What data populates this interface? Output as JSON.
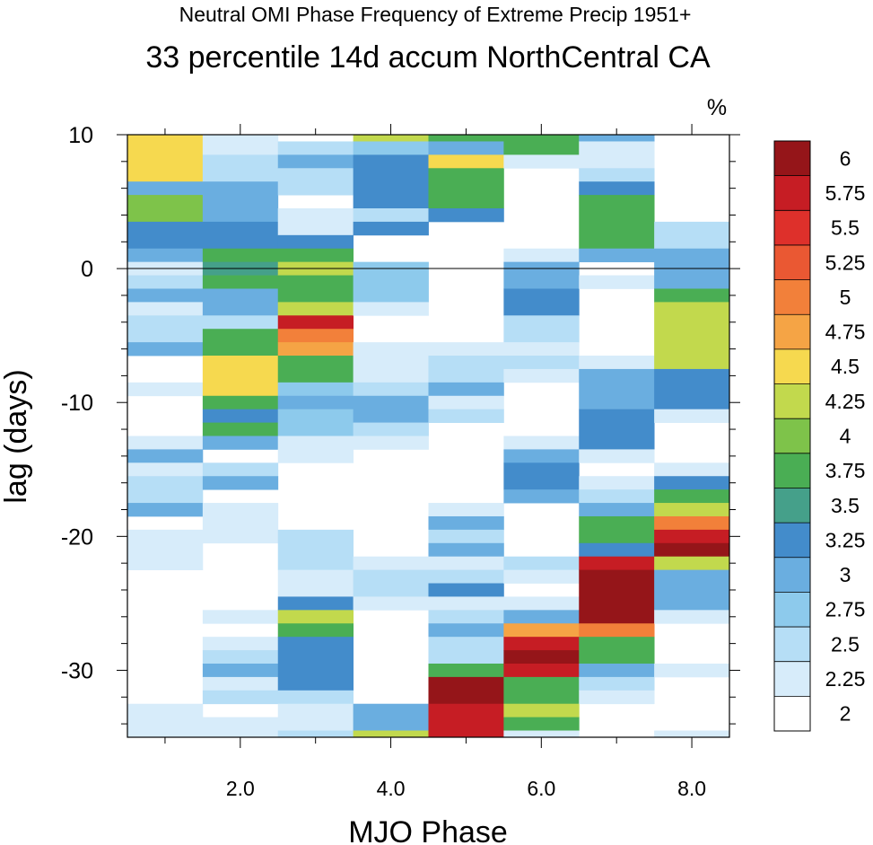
{
  "chart_data": {
    "type": "heatmap",
    "title": "33 percentile 14d accum NorthCentral CA",
    "subtitle": "Neutral OMI Phase Frequency of Extreme Precip 1951+",
    "units": "%",
    "xlabel": "MJO Phase",
    "ylabel": "lag (days)",
    "xlim": [
      0.5,
      8.5
    ],
    "ylim": [
      -35,
      10
    ],
    "xticks": [
      2,
      4,
      6,
      8
    ],
    "xtick_labels": [
      "2.0",
      "4.0",
      "6.0",
      "8.0"
    ],
    "yticks": [
      10,
      0,
      -10,
      -20,
      -30
    ],
    "ytick_labels": [
      "10",
      "0",
      "-10",
      "-20",
      "-30"
    ],
    "zero_line": true,
    "colorbar": {
      "levels": [
        "2",
        "2.25",
        "2.5",
        "2.75",
        "3",
        "3.25",
        "3.5",
        "3.75",
        "4",
        "4.25",
        "4.5",
        "4.75",
        "5",
        "5.25",
        "5.5",
        "5.75",
        "6"
      ],
      "colors": [
        "#ffffff",
        "#d7ecfa",
        "#b6def6",
        "#8dcaec",
        "#6aaee0",
        "#438ccb",
        "#45a08a",
        "#4aae54",
        "#7ec34a",
        "#c2d94d",
        "#f6d94f",
        "#f5a445",
        "#f2803a",
        "#ea5833",
        "#de302b",
        "#c61d24",
        "#951519"
      ]
    },
    "phases": [
      {
        "phase": 1,
        "runs": [
          [
            10,
            6.5,
            10
          ],
          [
            6.5,
            5.5,
            4
          ],
          [
            5.5,
            3.5,
            8
          ],
          [
            3.5,
            1.5,
            5
          ],
          [
            1.5,
            0.5,
            4
          ],
          [
            0.5,
            -0.5,
            1
          ],
          [
            -0.5,
            -1.5,
            2
          ],
          [
            -1.5,
            -2.5,
            4
          ],
          [
            -2.5,
            -3.5,
            1
          ],
          [
            -3.5,
            -5.5,
            2
          ],
          [
            -5.5,
            -6.5,
            4
          ],
          [
            -8.5,
            -9.5,
            1
          ],
          [
            -12.5,
            -13.5,
            1
          ],
          [
            -13.5,
            -14.5,
            4
          ],
          [
            -14.5,
            -15.5,
            1
          ],
          [
            -15.5,
            -17.5,
            2
          ],
          [
            -17.5,
            -18.5,
            4
          ],
          [
            -19.5,
            -22.5,
            1
          ],
          [
            -32.5,
            -35,
            1
          ]
        ]
      },
      {
        "phase": 2,
        "runs": [
          [
            10,
            8.5,
            1
          ],
          [
            8.5,
            6.5,
            2
          ],
          [
            6.5,
            3.5,
            4
          ],
          [
            3.5,
            1.5,
            5
          ],
          [
            1.5,
            0.5,
            7
          ],
          [
            0.5,
            -0.5,
            6
          ],
          [
            -0.5,
            -1.5,
            7
          ],
          [
            -1.5,
            -3.5,
            4
          ],
          [
            -3.5,
            -4.5,
            2
          ],
          [
            -4.5,
            -6.5,
            7
          ],
          [
            -6.5,
            -9.5,
            10
          ],
          [
            -9.5,
            -10.5,
            7
          ],
          [
            -10.5,
            -11.5,
            5
          ],
          [
            -11.5,
            -12.5,
            7
          ],
          [
            -12.5,
            -13.5,
            4
          ],
          [
            -14.5,
            -15.5,
            2
          ],
          [
            -15.5,
            -16.5,
            4
          ],
          [
            -17.5,
            -20.5,
            1
          ],
          [
            -25.5,
            -26.5,
            1
          ],
          [
            -27.5,
            -28.5,
            1
          ],
          [
            -28.5,
            -29.5,
            2
          ],
          [
            -29.5,
            -30.5,
            4
          ],
          [
            -30.5,
            -31.5,
            1
          ],
          [
            -31.5,
            -32.5,
            2
          ],
          [
            -33.5,
            -35,
            1
          ]
        ]
      },
      {
        "phase": 3,
        "runs": [
          [
            9.5,
            8.5,
            2
          ],
          [
            8.5,
            7.5,
            4
          ],
          [
            7.5,
            5.5,
            2
          ],
          [
            4.5,
            2.5,
            1
          ],
          [
            2.5,
            1.5,
            5
          ],
          [
            1.5,
            0.5,
            7
          ],
          [
            0.5,
            -0.5,
            9
          ],
          [
            -0.5,
            -2.5,
            7
          ],
          [
            -2.5,
            -3.5,
            9
          ],
          [
            -3.5,
            -4.5,
            15
          ],
          [
            -4.5,
            -5.5,
            12
          ],
          [
            -5.5,
            -6.5,
            11
          ],
          [
            -6.5,
            -8.5,
            7
          ],
          [
            -8.5,
            -9.5,
            3
          ],
          [
            -9.5,
            -10.5,
            4
          ],
          [
            -10.5,
            -12.5,
            3
          ],
          [
            -12.5,
            -13.5,
            1
          ],
          [
            -13.5,
            -14.5,
            1
          ],
          [
            -19.5,
            -22.5,
            2
          ],
          [
            -22.5,
            -24.5,
            1
          ],
          [
            -24.5,
            -25.5,
            5
          ],
          [
            -25.5,
            -26.5,
            9
          ],
          [
            -26.5,
            -27.5,
            7
          ],
          [
            -27.5,
            -31.5,
            5
          ],
          [
            -31.5,
            -32.5,
            2
          ],
          [
            -32.5,
            -34.5,
            1
          ],
          [
            -34.5,
            -35,
            2
          ]
        ]
      },
      {
        "phase": 4,
        "runs": [
          [
            10,
            9.5,
            9
          ],
          [
            9.5,
            8.5,
            3
          ],
          [
            8.5,
            4.5,
            5
          ],
          [
            4.5,
            3.5,
            2
          ],
          [
            3.5,
            2.5,
            5
          ],
          [
            0.5,
            -2.5,
            3
          ],
          [
            -2.5,
            -3.5,
            1
          ],
          [
            -5.5,
            -8.5,
            1
          ],
          [
            -8.5,
            -9.5,
            2
          ],
          [
            -9.5,
            -11.5,
            4
          ],
          [
            -11.5,
            -12.5,
            2
          ],
          [
            -12.5,
            -13.5,
            1
          ],
          [
            -21.5,
            -22.5,
            1
          ],
          [
            -22.5,
            -24.5,
            2
          ],
          [
            -24.5,
            -25.5,
            1
          ],
          [
            -32.5,
            -34.5,
            4
          ],
          [
            -34.5,
            -35,
            9
          ]
        ]
      },
      {
        "phase": 5,
        "runs": [
          [
            10,
            9.5,
            7
          ],
          [
            9.5,
            8.5,
            4
          ],
          [
            8.5,
            7.5,
            10
          ],
          [
            7.5,
            4.5,
            7
          ],
          [
            4.5,
            3.5,
            5
          ],
          [
            -5.5,
            -6.5,
            1
          ],
          [
            -6.5,
            -8.5,
            2
          ],
          [
            -8.5,
            -9.5,
            4
          ],
          [
            -9.5,
            -10.5,
            1
          ],
          [
            -10.5,
            -11.5,
            2
          ],
          [
            -17.5,
            -18.5,
            1
          ],
          [
            -18.5,
            -19.5,
            4
          ],
          [
            -19.5,
            -20.5,
            2
          ],
          [
            -20.5,
            -21.5,
            4
          ],
          [
            -21.5,
            -22.5,
            1
          ],
          [
            -22.5,
            -23.5,
            2
          ],
          [
            -23.5,
            -24.5,
            5
          ],
          [
            -24.5,
            -25.5,
            1
          ],
          [
            -25.5,
            -26.5,
            2
          ],
          [
            -26.5,
            -27.5,
            4
          ],
          [
            -27.5,
            -29.5,
            2
          ],
          [
            -29.5,
            -30.5,
            7
          ],
          [
            -30.5,
            -32.5,
            16
          ],
          [
            -32.5,
            -35,
            15
          ]
        ]
      },
      {
        "phase": 6,
        "runs": [
          [
            10,
            8.5,
            7
          ],
          [
            8.5,
            7.5,
            1
          ],
          [
            1.5,
            0.5,
            1
          ],
          [
            0.5,
            -1.5,
            4
          ],
          [
            -1.5,
            -3.5,
            5
          ],
          [
            -3.5,
            -5.5,
            2
          ],
          [
            -5.5,
            -6.5,
            1
          ],
          [
            -6.5,
            -7.5,
            2
          ],
          [
            -7.5,
            -8.5,
            1
          ],
          [
            -12.5,
            -13.5,
            1
          ],
          [
            -13.5,
            -14.5,
            4
          ],
          [
            -14.5,
            -16.5,
            5
          ],
          [
            -16.5,
            -17.5,
            4
          ],
          [
            -21.5,
            -22.5,
            2
          ],
          [
            -22.5,
            -23.5,
            1
          ],
          [
            -24.5,
            -25.5,
            1
          ],
          [
            -25.5,
            -26.5,
            4
          ],
          [
            -26.5,
            -27.5,
            11
          ],
          [
            -27.5,
            -28.5,
            15
          ],
          [
            -28.5,
            -29.5,
            16
          ],
          [
            -29.5,
            -30.5,
            15
          ],
          [
            -30.5,
            -32.5,
            7
          ],
          [
            -32.5,
            -33.5,
            9
          ],
          [
            -33.5,
            -34.5,
            7
          ],
          [
            -34.5,
            -35,
            1
          ]
        ]
      },
      {
        "phase": 7,
        "runs": [
          [
            10,
            9.5,
            4
          ],
          [
            9.5,
            7.5,
            1
          ],
          [
            7.5,
            6.5,
            2
          ],
          [
            6.5,
            5.5,
            5
          ],
          [
            5.5,
            1.5,
            7
          ],
          [
            1.5,
            0.5,
            4
          ],
          [
            -0.5,
            -1.5,
            1
          ],
          [
            -6.5,
            -7.5,
            1
          ],
          [
            -7.5,
            -10.5,
            4
          ],
          [
            -10.5,
            -13.5,
            5
          ],
          [
            -13.5,
            -14.5,
            1
          ],
          [
            -15.5,
            -16.5,
            1
          ],
          [
            -16.5,
            -17.5,
            2
          ],
          [
            -17.5,
            -18.5,
            4
          ],
          [
            -18.5,
            -20.5,
            7
          ],
          [
            -20.5,
            -21.5,
            5
          ],
          [
            -21.5,
            -22.5,
            15
          ],
          [
            -22.5,
            -26.5,
            16
          ],
          [
            -26.5,
            -27.5,
            12
          ],
          [
            -27.5,
            -29.5,
            7
          ],
          [
            -29.5,
            -30.5,
            4
          ],
          [
            -30.5,
            -31.5,
            2
          ],
          [
            -31.5,
            -32.5,
            1
          ]
        ]
      },
      {
        "phase": 8,
        "runs": [
          [
            3.5,
            1.5,
            2
          ],
          [
            1.5,
            -1.5,
            4
          ],
          [
            -1.5,
            -2.5,
            7
          ],
          [
            -2.5,
            -7.5,
            9
          ],
          [
            -7.5,
            -10.5,
            5
          ],
          [
            -10.5,
            -11.5,
            1
          ],
          [
            -14.5,
            -15.5,
            1
          ],
          [
            -15.5,
            -16.5,
            5
          ],
          [
            -16.5,
            -17.5,
            7
          ],
          [
            -17.5,
            -18.5,
            9
          ],
          [
            -18.5,
            -19.5,
            12
          ],
          [
            -19.5,
            -20.5,
            15
          ],
          [
            -20.5,
            -21.5,
            16
          ],
          [
            -21.5,
            -22.5,
            9
          ],
          [
            -22.5,
            -25.5,
            4
          ],
          [
            -25.5,
            -26.5,
            1
          ],
          [
            -29.5,
            -30.5,
            1
          ],
          [
            -34.5,
            -35,
            1
          ]
        ]
      }
    ]
  }
}
